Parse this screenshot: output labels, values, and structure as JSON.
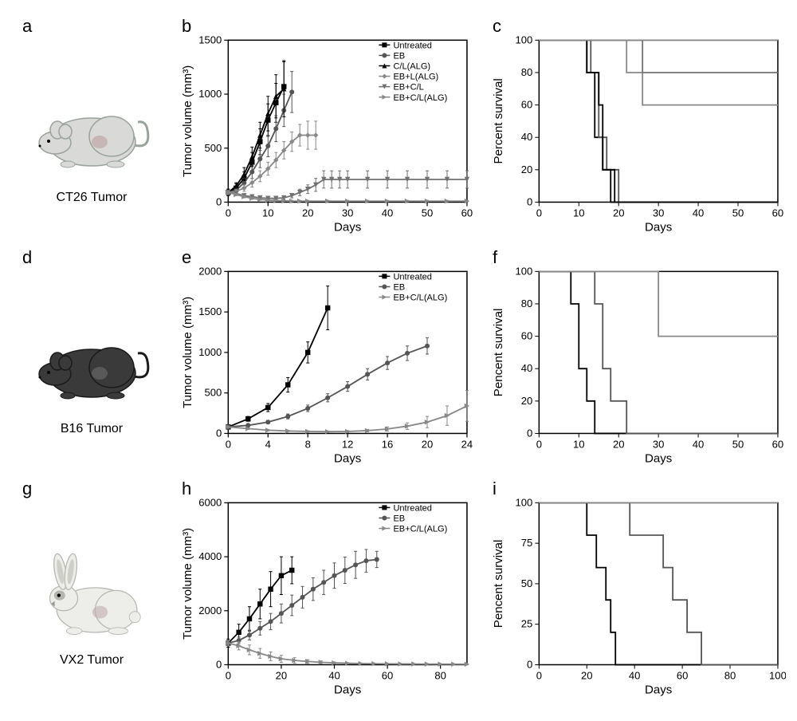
{
  "panels": {
    "a_letter": "a",
    "b_letter": "b",
    "c_letter": "c",
    "d_letter": "d",
    "e_letter": "e",
    "f_letter": "f",
    "g_letter": "g",
    "h_letter": "h",
    "i_letter": "i"
  },
  "animals": {
    "ct26": {
      "label": "CT26 Tumor",
      "body_color": "#d9d9d7",
      "outline": "#9aa29c",
      "tumor_color": "#bda7a7"
    },
    "b16": {
      "label": "B16 Tumor",
      "body_color": "#3a3a3a",
      "outline": "#1a1a1a",
      "tumor_color": "#666"
    },
    "vx2": {
      "label": "VX2 Tumor",
      "body_color": "#ededea",
      "outline": "#b7b7b3",
      "ear_inner": "#cfcfca",
      "eye_patch": "#b5b5b0",
      "tumor_color": "#c0aeae"
    }
  },
  "colors": {
    "untreated": "#000000",
    "eb": "#555555",
    "cl_alg": "#000000",
    "eb_l_alg": "#888888",
    "eb_cl": "#707070",
    "eb_cl_alg": "#888888",
    "grid": "#000000",
    "bg": "#ffffff"
  },
  "chart_b": {
    "type": "line-errorbar",
    "xlabel": "Days",
    "ylabel": "Tumor volume (mm³)",
    "xlim": [
      0,
      60
    ],
    "ylim": [
      0,
      1500
    ],
    "xtick_step": 10,
    "ytick_step": 500,
    "title_fontsize": 15,
    "label_fontsize": 13,
    "legend_pos": "top-right",
    "series": [
      {
        "name": "Untreated",
        "marker": "square",
        "color": "#000000",
        "x": [
          0,
          2,
          4,
          6,
          8,
          10,
          12,
          14
        ],
        "y": [
          90,
          130,
          220,
          370,
          560,
          760,
          920,
          1070
        ],
        "err": [
          30,
          40,
          60,
          90,
          120,
          150,
          180,
          230
        ]
      },
      {
        "name": "EB",
        "marker": "circle",
        "color": "#555555",
        "x": [
          0,
          2,
          4,
          6,
          8,
          10,
          12,
          14,
          16
        ],
        "y": [
          90,
          110,
          180,
          280,
          400,
          520,
          680,
          850,
          1020
        ],
        "err": [
          20,
          30,
          40,
          60,
          80,
          100,
          120,
          150,
          190
        ]
      },
      {
        "name": "C/L(ALG)",
        "marker": "triangle",
        "color": "#000000",
        "x": [
          0,
          2,
          4,
          6,
          8,
          10,
          12,
          14
        ],
        "y": [
          90,
          150,
          260,
          420,
          620,
          820,
          980,
          1050
        ],
        "err": [
          30,
          30,
          60,
          90,
          120,
          160,
          200,
          260
        ]
      },
      {
        "name": "EB+L(ALG)",
        "marker": "diamond",
        "color": "#888888",
        "x": [
          0,
          2,
          4,
          6,
          8,
          10,
          12,
          14,
          16,
          18,
          20,
          22
        ],
        "y": [
          90,
          100,
          130,
          180,
          240,
          310,
          390,
          480,
          560,
          620,
          620,
          620
        ],
        "err": [
          20,
          20,
          30,
          40,
          50,
          60,
          70,
          80,
          90,
          100,
          130,
          130
        ]
      },
      {
        "name": "EB+C/L",
        "marker": "triangle-down",
        "color": "#707070",
        "x": [
          0,
          2,
          4,
          6,
          8,
          10,
          12,
          14,
          16,
          18,
          20,
          22,
          24,
          26,
          28,
          30,
          35,
          40,
          45,
          50,
          55,
          60
        ],
        "y": [
          90,
          80,
          60,
          50,
          40,
          35,
          35,
          40,
          60,
          90,
          120,
          160,
          210,
          210,
          210,
          210,
          210,
          210,
          210,
          210,
          210,
          210
        ],
        "err": [
          10,
          10,
          10,
          10,
          10,
          10,
          10,
          15,
          20,
          30,
          40,
          60,
          80,
          80,
          80,
          80,
          80,
          80,
          80,
          80,
          80,
          80
        ]
      },
      {
        "name": "EB+C/L(ALG)",
        "marker": "triangle-right",
        "color": "#888888",
        "x": [
          0,
          2,
          4,
          6,
          8,
          10,
          12,
          14,
          16,
          18,
          20,
          25,
          30,
          35,
          40,
          45,
          50,
          55,
          60
        ],
        "y": [
          90,
          70,
          50,
          35,
          25,
          18,
          15,
          12,
          10,
          10,
          10,
          10,
          10,
          10,
          10,
          10,
          10,
          10,
          10
        ],
        "err": [
          10,
          10,
          10,
          8,
          8,
          6,
          6,
          6,
          6,
          6,
          6,
          6,
          6,
          6,
          6,
          6,
          6,
          6,
          6
        ]
      }
    ]
  },
  "chart_c": {
    "type": "kaplan-meier",
    "xlabel": "Days",
    "ylabel": "Percent survival",
    "xlim": [
      0,
      60
    ],
    "ylim": [
      0,
      100
    ],
    "xtick_step": 10,
    "ytick_step": 20,
    "series": [
      {
        "name": "Untreated",
        "color": "#000000",
        "steps": [
          [
            0,
            100
          ],
          [
            12,
            100
          ],
          [
            12,
            80
          ],
          [
            14,
            80
          ],
          [
            14,
            40
          ],
          [
            16,
            40
          ],
          [
            16,
            20
          ],
          [
            18,
            20
          ],
          [
            18,
            0
          ],
          [
            60,
            0
          ]
        ]
      },
      {
        "name": "EB",
        "color": "#555555",
        "steps": [
          [
            0,
            100
          ],
          [
            13,
            100
          ],
          [
            13,
            80
          ],
          [
            15,
            80
          ],
          [
            15,
            40
          ],
          [
            17,
            40
          ],
          [
            17,
            20
          ],
          [
            20,
            20
          ],
          [
            20,
            0
          ],
          [
            60,
            0
          ]
        ]
      },
      {
        "name": "C/L(ALG)",
        "color": "#000000",
        "steps": [
          [
            0,
            100
          ],
          [
            12,
            100
          ],
          [
            12,
            80
          ],
          [
            15,
            80
          ],
          [
            15,
            60
          ],
          [
            16,
            60
          ],
          [
            16,
            20
          ],
          [
            19,
            20
          ],
          [
            19,
            0
          ],
          [
            60,
            0
          ]
        ]
      },
      {
        "name": "EB+L(ALG)",
        "color": "#888888",
        "steps": [
          [
            0,
            100
          ],
          [
            22,
            100
          ],
          [
            22,
            80
          ],
          [
            26,
            80
          ],
          [
            26,
            60
          ],
          [
            60,
            60
          ]
        ]
      },
      {
        "name": "EB+C/L",
        "color": "#707070",
        "steps": [
          [
            0,
            100
          ],
          [
            26,
            100
          ],
          [
            26,
            80
          ],
          [
            60,
            80
          ]
        ]
      },
      {
        "name": "EB+C/L(ALG)",
        "color": "#888888",
        "steps": [
          [
            0,
            100
          ],
          [
            60,
            100
          ]
        ]
      }
    ]
  },
  "chart_e": {
    "type": "line-errorbar",
    "xlabel": "Days",
    "ylabel": "Tumor volume (mm³)",
    "xlim": [
      0,
      24
    ],
    "ylim": [
      0,
      2000
    ],
    "xtick_step": 4,
    "ytick_step": 500,
    "legend_pos": "top-right-inside",
    "series": [
      {
        "name": "Untreated",
        "marker": "square",
        "color": "#000000",
        "x": [
          0,
          2,
          4,
          6,
          8,
          10
        ],
        "y": [
          80,
          180,
          320,
          600,
          1000,
          1550
        ],
        "err": [
          20,
          30,
          50,
          90,
          130,
          270
        ]
      },
      {
        "name": "EB",
        "marker": "circle",
        "color": "#555555",
        "x": [
          0,
          2,
          4,
          6,
          8,
          10,
          12,
          14,
          16,
          18,
          20
        ],
        "y": [
          80,
          100,
          140,
          210,
          310,
          440,
          580,
          730,
          870,
          990,
          1080
        ],
        "err": [
          15,
          15,
          20,
          30,
          40,
          50,
          60,
          70,
          80,
          90,
          100
        ]
      },
      {
        "name": "EB+C/L(ALG)",
        "marker": "triangle-right",
        "color": "#888888",
        "x": [
          0,
          2,
          4,
          6,
          8,
          10,
          12,
          14,
          16,
          18,
          20,
          22,
          24
        ],
        "y": [
          80,
          60,
          40,
          30,
          25,
          22,
          25,
          35,
          55,
          90,
          140,
          220,
          340
        ],
        "err": [
          10,
          10,
          8,
          8,
          8,
          8,
          10,
          15,
          25,
          40,
          70,
          120,
          190
        ]
      }
    ]
  },
  "chart_f": {
    "type": "kaplan-meier",
    "xlabel": "Days",
    "ylabel": "Pencent survival",
    "xlim": [
      0,
      60
    ],
    "ylim": [
      0,
      100
    ],
    "xtick_step": 10,
    "ytick_step": 20,
    "series": [
      {
        "name": "Untreated",
        "color": "#000000",
        "steps": [
          [
            0,
            100
          ],
          [
            8,
            100
          ],
          [
            8,
            80
          ],
          [
            10,
            80
          ],
          [
            10,
            40
          ],
          [
            12,
            40
          ],
          [
            12,
            20
          ],
          [
            14,
            20
          ],
          [
            14,
            0
          ],
          [
            60,
            0
          ]
        ]
      },
      {
        "name": "EB",
        "color": "#555555",
        "steps": [
          [
            0,
            100
          ],
          [
            14,
            100
          ],
          [
            14,
            80
          ],
          [
            16,
            80
          ],
          [
            16,
            40
          ],
          [
            18,
            40
          ],
          [
            18,
            20
          ],
          [
            22,
            20
          ],
          [
            22,
            0
          ],
          [
            60,
            0
          ]
        ]
      },
      {
        "name": "EB+C/L(ALG)",
        "color": "#888888",
        "steps": [
          [
            0,
            100
          ],
          [
            22,
            100
          ],
          [
            22,
            100
          ],
          [
            30,
            100
          ],
          [
            30,
            60
          ],
          [
            60,
            60
          ]
        ]
      }
    ]
  },
  "chart_h": {
    "type": "line-errorbar",
    "xlabel": "Days",
    "ylabel": "Tumor volume (mm³)",
    "xlim": [
      0,
      90
    ],
    "ylim": [
      0,
      6000
    ],
    "xtick_step": 20,
    "ytick_vals": [
      0,
      2000,
      4000,
      6000
    ],
    "legend_pos": "top-right-inside",
    "series": [
      {
        "name": "Untreated",
        "marker": "square",
        "color": "#000000",
        "x": [
          0,
          4,
          8,
          12,
          16,
          20,
          24
        ],
        "y": [
          800,
          1200,
          1700,
          2250,
          2800,
          3300,
          3500
        ],
        "err": [
          150,
          300,
          450,
          550,
          650,
          700,
          500
        ]
      },
      {
        "name": "EB",
        "marker": "circle",
        "color": "#555555",
        "x": [
          0,
          4,
          8,
          12,
          16,
          20,
          24,
          28,
          32,
          36,
          40,
          44,
          48,
          52,
          56
        ],
        "y": [
          800,
          900,
          1100,
          1350,
          1600,
          1900,
          2200,
          2500,
          2800,
          3050,
          3300,
          3500,
          3700,
          3850,
          3900
        ],
        "err": [
          100,
          120,
          180,
          250,
          300,
          350,
          380,
          400,
          420,
          450,
          470,
          490,
          500,
          420,
          300
        ]
      },
      {
        "name": "EB+C/L(ALG)",
        "marker": "triangle-right",
        "color": "#888888",
        "x": [
          0,
          4,
          8,
          12,
          16,
          20,
          25,
          30,
          35,
          40,
          45,
          50,
          55,
          60,
          65,
          70,
          75,
          80,
          85,
          90
        ],
        "y": [
          800,
          700,
          550,
          420,
          310,
          220,
          160,
          120,
          90,
          70,
          55,
          45,
          40,
          35,
          30,
          28,
          25,
          22,
          20,
          18
        ],
        "err": [
          100,
          150,
          180,
          180,
          160,
          130,
          100,
          70,
          50,
          30,
          20,
          15,
          12,
          10,
          10,
          10,
          10,
          10,
          10,
          10
        ]
      }
    ]
  },
  "chart_i": {
    "type": "kaplan-meier",
    "xlabel": "Days",
    "ylabel": "Pencent survival",
    "xlim": [
      0,
      100
    ],
    "ylim": [
      0,
      100
    ],
    "xtick_step": 20,
    "ytick_step": 25,
    "series": [
      {
        "name": "Untreated",
        "color": "#000000",
        "steps": [
          [
            0,
            100
          ],
          [
            20,
            100
          ],
          [
            20,
            80
          ],
          [
            24,
            80
          ],
          [
            24,
            60
          ],
          [
            28,
            60
          ],
          [
            28,
            40
          ],
          [
            30,
            40
          ],
          [
            30,
            20
          ],
          [
            32,
            20
          ],
          [
            32,
            0
          ],
          [
            100,
            0
          ]
        ]
      },
      {
        "name": "EB",
        "color": "#555555",
        "steps": [
          [
            0,
            100
          ],
          [
            38,
            100
          ],
          [
            38,
            80
          ],
          [
            52,
            80
          ],
          [
            52,
            60
          ],
          [
            56,
            60
          ],
          [
            56,
            40
          ],
          [
            62,
            40
          ],
          [
            62,
            20
          ],
          [
            68,
            20
          ],
          [
            68,
            0
          ],
          [
            100,
            0
          ]
        ]
      },
      {
        "name": "EB+C/L(ALG)",
        "color": "#888888",
        "steps": [
          [
            0,
            100
          ],
          [
            100,
            100
          ]
        ]
      }
    ]
  }
}
